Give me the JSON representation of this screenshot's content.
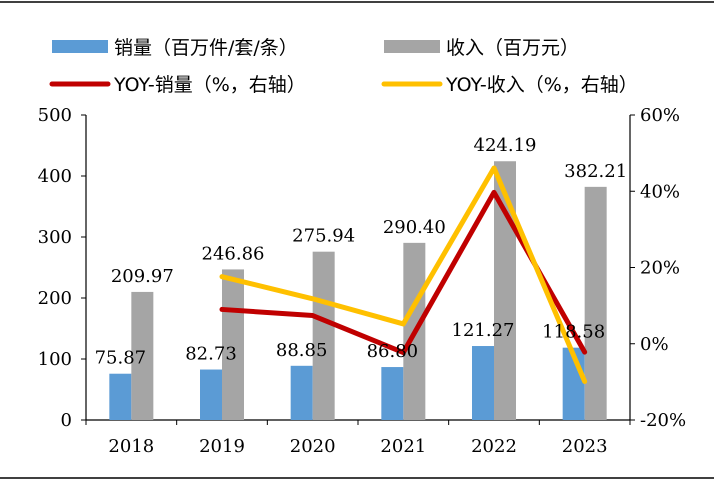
{
  "chart_data": {
    "type": "bar",
    "categories": [
      "2018",
      "2019",
      "2020",
      "2021",
      "2022",
      "2023"
    ],
    "series": [
      {
        "name": "销量（百万件/套/条）",
        "type": "bar",
        "axis": "left",
        "color": "#5B9BD5",
        "values": [
          75.87,
          82.73,
          88.85,
          86.8,
          121.27,
          118.58
        ],
        "labels": [
          "75.87",
          "82.73",
          "88.85",
          "86.80",
          "121.27",
          "118.58"
        ]
      },
      {
        "name": "收入（百万元）",
        "type": "bar",
        "axis": "left",
        "color": "#A5A5A5",
        "values": [
          209.97,
          246.86,
          275.94,
          290.4,
          424.19,
          382.21
        ],
        "labels": [
          "209.97",
          "246.86",
          "275.94",
          "290.40",
          "424.19",
          "382.21"
        ]
      },
      {
        "name": "YOY-销量（%，右轴）",
        "type": "line",
        "axis": "right",
        "color": "#C00000",
        "values": [
          null,
          9.0,
          7.4,
          -2.3,
          39.7,
          -2.2
        ]
      },
      {
        "name": "YOY-收入（%，右轴）",
        "type": "line",
        "axis": "right",
        "color": "#FFC000",
        "values": [
          null,
          17.6,
          11.8,
          5.2,
          46.1,
          -9.9
        ]
      }
    ],
    "y_left": {
      "min": 0,
      "max": 500,
      "ticks": [
        "0",
        "100",
        "200",
        "300",
        "400",
        "500"
      ]
    },
    "y_right": {
      "min": -20,
      "max": 60,
      "ticks": [
        "-20%",
        "0%",
        "20%",
        "40%",
        "60%"
      ]
    },
    "grid": false,
    "legend_position": "top"
  }
}
